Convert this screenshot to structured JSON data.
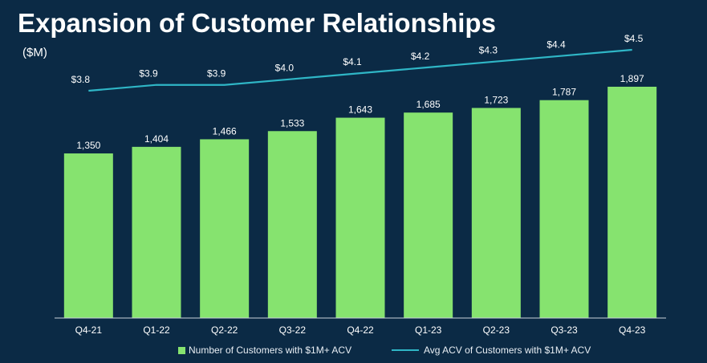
{
  "title": "Expansion of Customer Relationships",
  "unit_label": "($M)",
  "colors": {
    "background": "#0b2a45",
    "bar": "#86e36f",
    "line": "#2fb6c6",
    "text": "#ffffff",
    "axis": "#c8d2dc"
  },
  "chart_data": {
    "type": "bar",
    "categories": [
      "Q4-21",
      "Q1-22",
      "Q2-22",
      "Q3-22",
      "Q4-22",
      "Q1-23",
      "Q2-23",
      "Q3-23",
      "Q4-23"
    ],
    "series": [
      {
        "name": "Number of Customers with $1M+ ACV",
        "type": "bar",
        "values": [
          1350,
          1404,
          1466,
          1533,
          1643,
          1685,
          1723,
          1787,
          1897
        ],
        "labels": [
          "1,350",
          "1,404",
          "1,466",
          "1,533",
          "1,643",
          "1,685",
          "1,723",
          "1,787",
          "1,897"
        ]
      },
      {
        "name": "Avg ACV of Customers with $1M+ ACV",
        "type": "line",
        "values": [
          3.8,
          3.9,
          3.9,
          4.0,
          4.1,
          4.2,
          4.3,
          4.4,
          4.5
        ],
        "labels": [
          "$3.8",
          "$3.9",
          "$3.9",
          "$4.0",
          "$4.1",
          "$4.2",
          "$4.3",
          "$4.4",
          "$4.5"
        ]
      }
    ],
    "legend": {
      "bar_label": "Number of Customers with $1M+ ACV",
      "line_label": "Avg ACV of Customers with $1M+ ACV",
      "placement": "bottom"
    },
    "grid": false
  }
}
